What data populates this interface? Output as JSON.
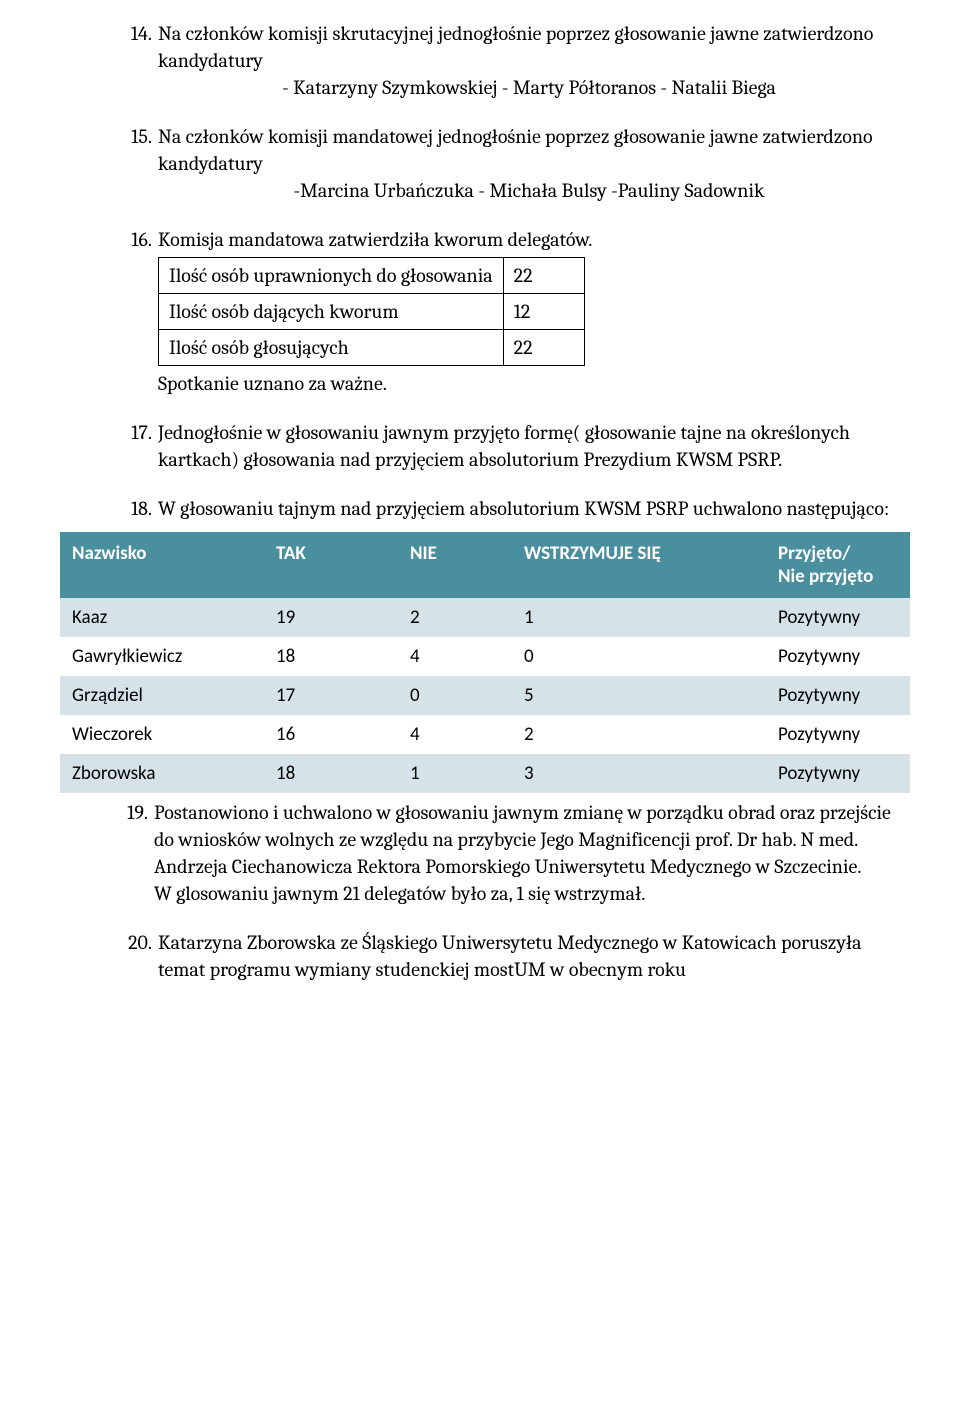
{
  "colors": {
    "header_bg": "#4a8f9e",
    "header_text": "#ffffff",
    "row_odd_bg": "#d5e3e8",
    "row_even_bg": "#ffffff",
    "text": "#000000"
  },
  "items": {
    "i14": {
      "num": "14.",
      "text": "Na członków komisji skrutacyjnej jednogłośnie poprzez głosowanie jawne zatwierdzono kandydatury",
      "lines": [
        "- Katarzyny Szymkowskiej",
        "- Marty Półtoranos",
        "- Natalii Biega"
      ]
    },
    "i15": {
      "num": "15.",
      "text": "Na członków komisji mandatowej jednogłośnie poprzez głosowanie jawne zatwierdzono kandydatury",
      "lines": [
        "-Marcina Urbańczuka",
        "- Michała Bulsy",
        "-Pauliny Sadownik"
      ]
    },
    "i16": {
      "num": "16.",
      "text": "Komisja mandatowa zatwierdziła kworum delegatów.",
      "after": "Spotkanie uznano za ważne."
    },
    "i17": {
      "num": "17.",
      "text": "Jednogłośnie w głosowaniu jawnym przyjęto formę( głosowanie tajne na określonych kartkach) głosowania nad przyjęciem absolutorium Prezydium KWSM PSRP."
    },
    "i18": {
      "num": "18.",
      "text": "W głosowaniu tajnym nad przyjęciem absolutorium KWSM PSRP uchwalono następująco:"
    },
    "i19": {
      "num": "19.",
      "text_a": " Postanowiono i uchwalono w głosowaniu jawnym zmianę w porządku obrad oraz przejście do wniosków wolnych ze względu na przybycie Jego Magnificencji prof. Dr hab. N med. Andrzeja Ciechanowicza Rektora Pomorskiego Uniwersytetu Medycznego w Szczecinie.",
      "text_b": "W glosowaniu jawnym 21 delegatów było za, 1 się wstrzymał."
    },
    "i20": {
      "num": "20.",
      "text": "Katarzyna Zborowska ze Śląskiego Uniwersytetu Medycznego w Katowicach poruszyła temat programu wymiany studenckiej mostUM w obecnym roku"
    }
  },
  "quorum_table": {
    "rows": [
      {
        "label": "Ilość osób uprawnionych do głosowania",
        "value": "22"
      },
      {
        "label": "Ilość osób dających kworum",
        "value": "12"
      },
      {
        "label": "Ilość osób głosujących",
        "value": " 22"
      }
    ]
  },
  "vote_table": {
    "headers": {
      "name": "Nazwisko",
      "tak": "TAK",
      "nie": "NIE",
      "abs": "WSTRZYMUJE SIĘ",
      "res1": "Przyjęto/",
      "res2": "Nie przyjęto"
    },
    "rows": [
      {
        "name": "Kaaz",
        "tak": "19",
        "nie": "2",
        "abs": "1",
        "res": "Pozytywny"
      },
      {
        "name": "Gawryłkiewicz",
        "tak": "18",
        "nie": "4",
        "abs": "0",
        "res": "Pozytywny"
      },
      {
        "name": "Grządziel",
        "tak": "17",
        "nie": "0",
        "abs": "5",
        "res": "Pozytywny"
      },
      {
        "name": "Wieczorek",
        "tak": "16",
        "nie": "4",
        "abs": "2",
        "res": "Pozytywny"
      },
      {
        "name": "Zborowska",
        "tak": "18",
        "nie": "1",
        "abs": "3",
        "res": "Pozytywny"
      }
    ]
  }
}
